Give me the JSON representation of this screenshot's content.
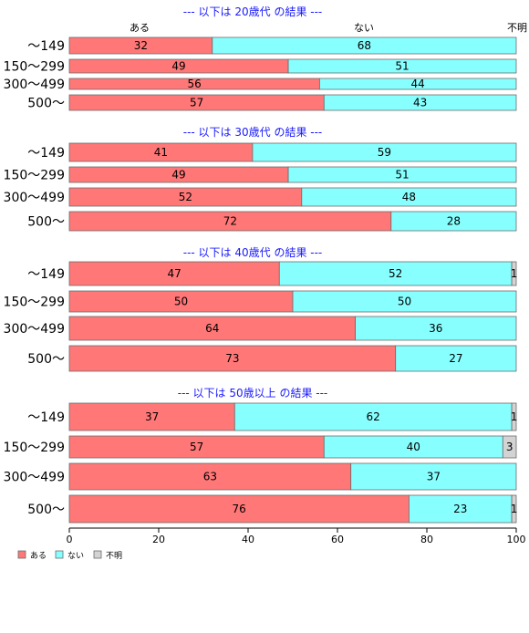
{
  "colors": {
    "aru": "#ff7777",
    "nai": "#88ffff",
    "fumei": "#d3d3d3",
    "title": "#1a1aff"
  },
  "top_labels": [
    "ある",
    "ない",
    "不明"
  ],
  "chart_data": {
    "type": "bar",
    "orientation": "horizontal",
    "stacked": true,
    "xlim": [
      0,
      100
    ],
    "xticks": [
      0,
      20,
      40,
      60,
      80,
      100
    ],
    "legend": {
      "placement": "bottom-left",
      "entries": [
        "ある",
        "ない",
        "不明"
      ]
    },
    "series_names": [
      "ある",
      "ない",
      "不明"
    ],
    "panels": [
      {
        "title": "--- 以下は 20歳代 の結果 ---",
        "categories": [
          "〜149",
          "150〜299",
          "300〜499",
          "500〜"
        ],
        "series": [
          {
            "name": "ある",
            "values": [
              32,
              49,
              56,
              57
            ]
          },
          {
            "name": "ない",
            "values": [
              68,
              51,
              44,
              43
            ]
          },
          {
            "name": "不明",
            "values": [
              0,
              0,
              0,
              0
            ]
          }
        ]
      },
      {
        "title": "--- 以下は 30歳代 の結果 ---",
        "categories": [
          "〜149",
          "150〜299",
          "300〜499",
          "500〜"
        ],
        "series": [
          {
            "name": "ある",
            "values": [
              41,
              49,
              52,
              72
            ]
          },
          {
            "name": "ない",
            "values": [
              59,
              51,
              48,
              28
            ]
          },
          {
            "name": "不明",
            "values": [
              0,
              0,
              0,
              0
            ]
          }
        ]
      },
      {
        "title": "--- 以下は 40歳代 の結果 ---",
        "categories": [
          "〜149",
          "150〜299",
          "300〜499",
          "500〜"
        ],
        "series": [
          {
            "name": "ある",
            "values": [
              47,
              50,
              64,
              73
            ]
          },
          {
            "name": "ない",
            "values": [
              52,
              50,
              36,
              27
            ]
          },
          {
            "name": "不明",
            "values": [
              1,
              0,
              0,
              0
            ]
          }
        ]
      },
      {
        "title": "--- 以下は 50歳以上 の結果 ---",
        "categories": [
          "〜149",
          "150〜299",
          "300〜499",
          "500〜"
        ],
        "series": [
          {
            "name": "ある",
            "values": [
              37,
              57,
              63,
              76
            ]
          },
          {
            "name": "ない",
            "values": [
              62,
              40,
              37,
              23
            ]
          },
          {
            "name": "不明",
            "values": [
              1,
              3,
              0,
              1
            ]
          }
        ]
      }
    ]
  }
}
